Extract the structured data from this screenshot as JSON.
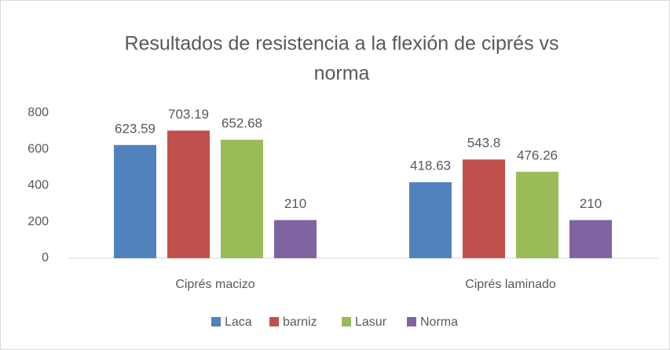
{
  "chart_data": {
    "type": "bar",
    "title_lines": [
      "Resultados de resistencia a la flexión de ciprés vs",
      "norma"
    ],
    "categories": [
      "Ciprés macizo",
      "Ciprés laminado"
    ],
    "series": [
      {
        "name": "Laca",
        "color": "#4f81bd",
        "values": [
          623.59,
          418.63
        ]
      },
      {
        "name": "barniz",
        "color": "#c0504d",
        "values": [
          703.19,
          543.8
        ]
      },
      {
        "name": "Lasur",
        "color": "#9bbb59",
        "values": [
          652.68,
          476.26
        ]
      },
      {
        "name": "Norma",
        "color": "#8064a2",
        "values": [
          210,
          210
        ]
      }
    ],
    "ylim": [
      0,
      800
    ],
    "yticks": [
      0,
      200,
      400,
      600,
      800
    ],
    "grid": false,
    "legend": "bottom"
  }
}
